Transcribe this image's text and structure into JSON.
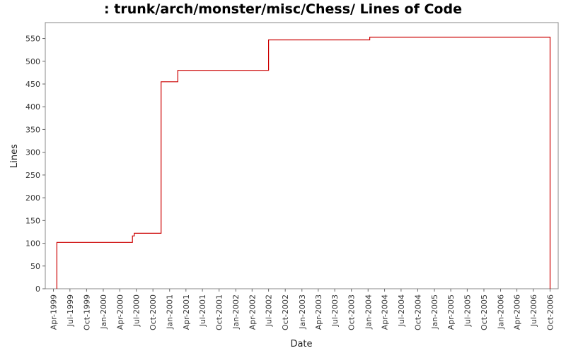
{
  "chart_data": {
    "type": "line",
    "title": ": trunk/arch/monster/misc/Chess/ Lines of Code",
    "xlabel": "Date",
    "ylabel": "Lines",
    "x_axis_type": "date",
    "x_range": [
      "1999-02-15",
      "2006-11-15"
    ],
    "ylim": [
      0,
      585
    ],
    "y_ticks": [
      0,
      50,
      100,
      150,
      200,
      250,
      300,
      350,
      400,
      450,
      500,
      550
    ],
    "x_ticks": [
      {
        "label": "Apr-1999",
        "date": "1999-04-01"
      },
      {
        "label": "Jul-1999",
        "date": "1999-07-01"
      },
      {
        "label": "Oct-1999",
        "date": "1999-10-01"
      },
      {
        "label": "Jan-2000",
        "date": "2000-01-01"
      },
      {
        "label": "Apr-2000",
        "date": "2000-04-01"
      },
      {
        "label": "Jul-2000",
        "date": "2000-07-01"
      },
      {
        "label": "Oct-2000",
        "date": "2000-10-01"
      },
      {
        "label": "Jan-2001",
        "date": "2001-01-01"
      },
      {
        "label": "Apr-2001",
        "date": "2001-04-01"
      },
      {
        "label": "Jul-2001",
        "date": "2001-07-01"
      },
      {
        "label": "Oct-2001",
        "date": "2001-10-01"
      },
      {
        "label": "Jan-2002",
        "date": "2002-01-01"
      },
      {
        "label": "Apr-2002",
        "date": "2002-04-01"
      },
      {
        "label": "Jul-2002",
        "date": "2002-07-01"
      },
      {
        "label": "Oct-2002",
        "date": "2002-10-01"
      },
      {
        "label": "Jan-2003",
        "date": "2003-01-01"
      },
      {
        "label": "Apr-2003",
        "date": "2003-04-01"
      },
      {
        "label": "Jul-2003",
        "date": "2003-07-01"
      },
      {
        "label": "Oct-2003",
        "date": "2003-10-01"
      },
      {
        "label": "Jan-2004",
        "date": "2004-01-01"
      },
      {
        "label": "Apr-2004",
        "date": "2004-04-01"
      },
      {
        "label": "Jul-2004",
        "date": "2004-07-01"
      },
      {
        "label": "Oct-2004",
        "date": "2004-10-01"
      },
      {
        "label": "Jan-2005",
        "date": "2005-01-01"
      },
      {
        "label": "Apr-2005",
        "date": "2005-04-01"
      },
      {
        "label": "Jul-2005",
        "date": "2005-07-01"
      },
      {
        "label": "Oct-2005",
        "date": "2005-10-01"
      },
      {
        "label": "Jan-2006",
        "date": "2006-01-01"
      },
      {
        "label": "Apr-2006",
        "date": "2006-04-01"
      },
      {
        "label": "Jul-2006",
        "date": "2006-07-01"
      },
      {
        "label": "Oct-2006",
        "date": "2006-10-01"
      }
    ],
    "grid": false,
    "legend": "none",
    "series": [
      {
        "color": "#cc0000",
        "step": true,
        "points": [
          {
            "x": "1999-04-20",
            "y": 0
          },
          {
            "x": "1999-04-20",
            "y": 102
          },
          {
            "x": "2000-06-10",
            "y": 102
          },
          {
            "x": "2000-06-10",
            "y": 116
          },
          {
            "x": "2000-06-20",
            "y": 116
          },
          {
            "x": "2000-06-20",
            "y": 122
          },
          {
            "x": "2000-11-15",
            "y": 122
          },
          {
            "x": "2000-11-15",
            "y": 455
          },
          {
            "x": "2001-02-15",
            "y": 455
          },
          {
            "x": "2001-02-15",
            "y": 480
          },
          {
            "x": "2002-07-01",
            "y": 480
          },
          {
            "x": "2002-07-01",
            "y": 547
          },
          {
            "x": "2004-01-10",
            "y": 547
          },
          {
            "x": "2004-01-10",
            "y": 553
          },
          {
            "x": "2006-10-01",
            "y": 553
          },
          {
            "x": "2006-10-01",
            "y": 0
          }
        ]
      }
    ]
  }
}
